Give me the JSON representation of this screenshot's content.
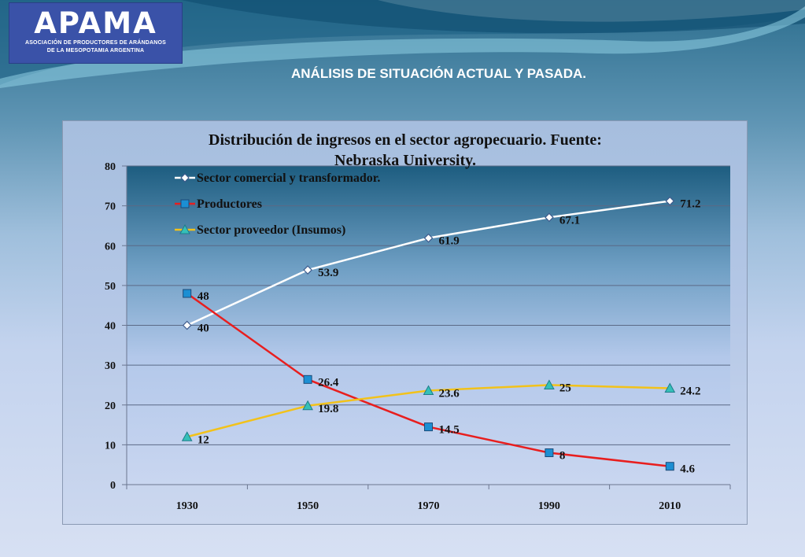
{
  "header": {
    "logo_text": "APAMA",
    "logo_subtitle_line1": "ASOCIACIÓN DE PRODUCTORES DE ARÁNDANOS",
    "logo_subtitle_line2": "DE LA MESOPOTAMIA ARGENTINA",
    "slide_title": "ANÁLISIS DE SITUACIÓN ACTUAL Y PASADA."
  },
  "chart_data": {
    "type": "line",
    "title_line1": "Distribución de ingresos en el sector agropecuario. Fuente:",
    "title_line2": "Nebraska University.",
    "categories": [
      "1930",
      "1950",
      "1970",
      "1990",
      "2010"
    ],
    "ylim": [
      0,
      80
    ],
    "yticks": [
      "0",
      "10",
      "20",
      "30",
      "40",
      "50",
      "60",
      "70",
      "80"
    ],
    "grid": true,
    "legend_position": "top-left",
    "series": [
      {
        "name": "Sector comercial y transformador.",
        "values": [
          40,
          53.9,
          61.9,
          67.1,
          71.2
        ],
        "labels": [
          "40",
          "53.9",
          "61.9",
          "67.1",
          "71.2"
        ],
        "color": "#ffffff",
        "marker": "diamond"
      },
      {
        "name": "Productores",
        "values": [
          48,
          26.4,
          14.5,
          8,
          4.6
        ],
        "labels": [
          "48",
          "26.4",
          "14.5",
          "8",
          "4.6"
        ],
        "color": "#e81e1e",
        "marker": "square"
      },
      {
        "name": "Sector proveedor (Insumos)",
        "values": [
          12,
          19.8,
          23.6,
          25,
          24.2
        ],
        "labels": [
          "12",
          "19.8",
          "23.6",
          "25",
          "24.2"
        ],
        "color": "#f2c21a",
        "marker": "triangle"
      }
    ]
  }
}
